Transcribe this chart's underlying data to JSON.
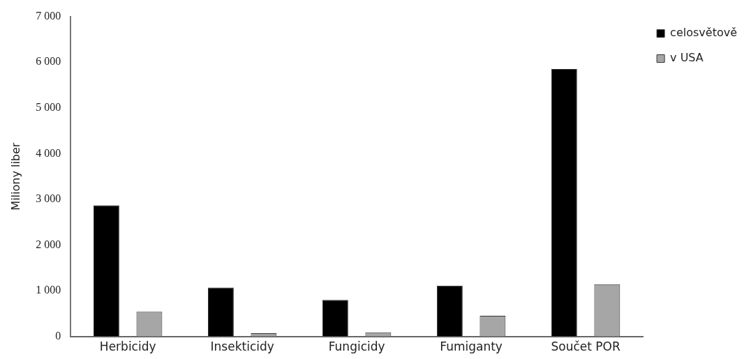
{
  "chart_data": {
    "type": "bar",
    "ylabel": "Miliony liber",
    "categories": [
      "Herbicidy",
      "Insekticidy",
      "Fungicidy",
      "Fumiganty",
      "Součet POR"
    ],
    "series": [
      {
        "name": "celosvětově",
        "color": "#000000",
        "values": [
          2870,
          1070,
          800,
          1110,
          5850
        ]
      },
      {
        "name": "v USA",
        "color": "#a6a6a6",
        "values": [
          540,
          70,
          90,
          450,
          1140
        ]
      }
    ],
    "ylim": [
      0,
      7000
    ],
    "yticks": [
      0,
      {
        "value": 1000,
        "label": "1 000"
      },
      {
        "value": 2000,
        "label": "2 000"
      },
      {
        "value": 3000,
        "label": "3 000"
      },
      {
        "value": 4000,
        "label": "4 000"
      },
      {
        "value": 5000,
        "label": "5 000"
      },
      {
        "value": 6000,
        "label": "6 000"
      },
      {
        "value": 7000,
        "label": "7 000"
      }
    ],
    "grid": false,
    "legend": "right"
  }
}
